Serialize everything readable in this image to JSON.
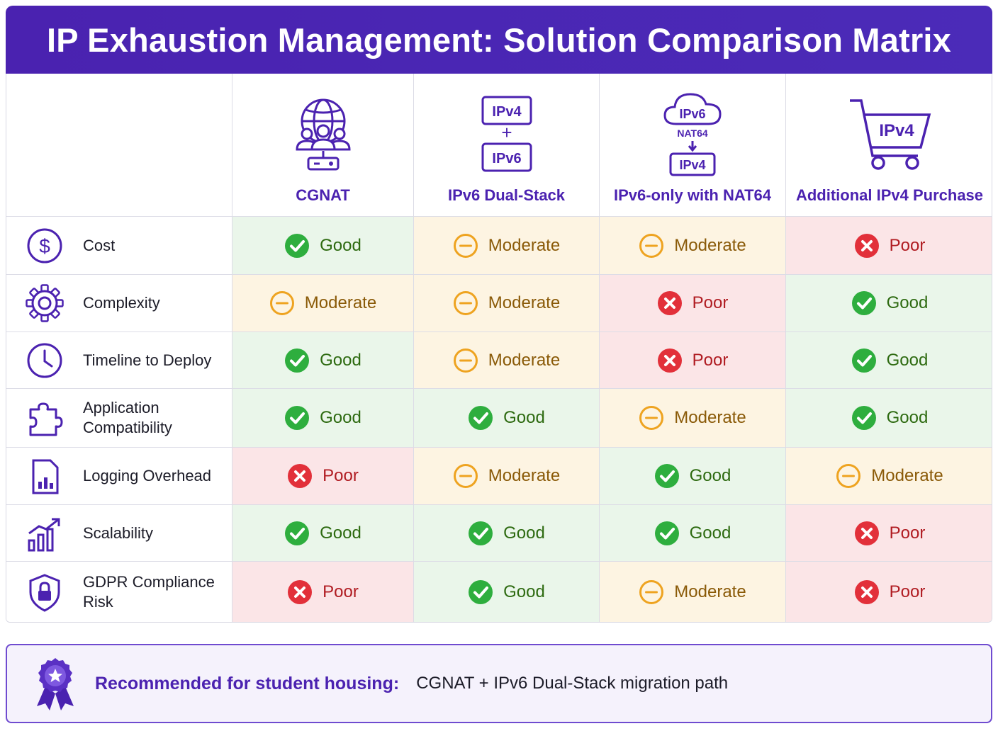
{
  "title": "IP Exhaustion Management: Solution Comparison Matrix",
  "columns": [
    {
      "label": "CGNAT",
      "icon": "globe-users-router-icon"
    },
    {
      "label": "IPv6 Dual-Stack",
      "icon": "ipv4-plus-ipv6-icon",
      "icon_text": [
        "IPv4",
        "+",
        "IPv6"
      ]
    },
    {
      "label": "IPv6-only with NAT64",
      "icon": "cloud-nat64-icon",
      "icon_text": [
        "IPv6",
        "NAT64",
        "IPv4"
      ]
    },
    {
      "label": "Additional IPv4 Purchase",
      "icon": "shopping-cart-ipv4-icon",
      "icon_text": [
        "IPv4"
      ]
    }
  ],
  "rows": [
    {
      "label": "Cost",
      "icon": "dollar-icon",
      "ratings": [
        "Good",
        "Moderate",
        "Moderate",
        "Poor"
      ]
    },
    {
      "label": "Complexity",
      "icon": "gear-icon",
      "ratings": [
        "Moderate",
        "Moderate",
        "Poor",
        "Good"
      ]
    },
    {
      "label": "Timeline to Deploy",
      "icon": "clock-icon",
      "ratings": [
        "Good",
        "Moderate",
        "Poor",
        "Good"
      ]
    },
    {
      "label": "Application Compatibility",
      "label_lines": [
        "Application",
        "Compatibility"
      ],
      "icon": "puzzle-icon",
      "ratings": [
        "Good",
        "Good",
        "Moderate",
        "Good"
      ]
    },
    {
      "label": "Logging Overhead",
      "icon": "log-document-icon",
      "ratings": [
        "Poor",
        "Moderate",
        "Good",
        "Moderate"
      ]
    },
    {
      "label": "Scalability",
      "icon": "growth-chart-icon",
      "ratings": [
        "Good",
        "Good",
        "Good",
        "Poor"
      ]
    },
    {
      "label": "GDPR Compliance Risk",
      "label_lines": [
        "GDPR Compliance",
        "Risk"
      ],
      "icon": "shield-lock-icon",
      "ratings": [
        "Poor",
        "Good",
        "Moderate",
        "Poor"
      ]
    }
  ],
  "rating_colors": {
    "Good": "#2eae3e",
    "Moderate": "#eea320",
    "Poor": "#e2303a"
  },
  "recommendation": {
    "label": "Recommended for student housing:",
    "value": "CGNAT + IPv6 Dual-Stack migration path",
    "icon": "award-ribbon-icon"
  }
}
